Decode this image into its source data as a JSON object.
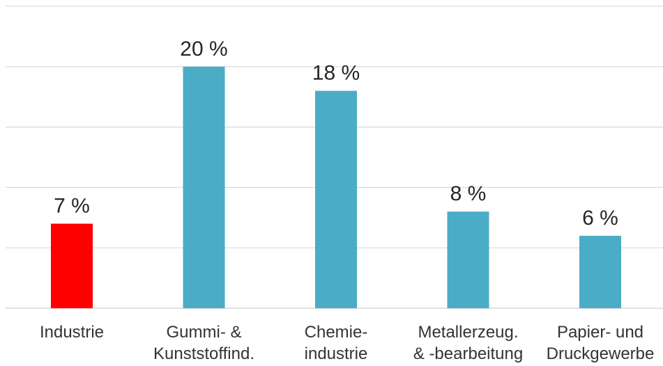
{
  "chart_data": {
    "type": "bar",
    "categories": [
      [
        "Industrie"
      ],
      [
        "Gummi- &",
        "Kunststoffind."
      ],
      [
        "Chemie-",
        "industrie"
      ],
      [
        "Metallerzeug.",
        "& -bearbeitung"
      ],
      [
        "Papier- und",
        "Druckgewerbe"
      ]
    ],
    "values": [
      7,
      20,
      18,
      8,
      6
    ],
    "data_labels": [
      "7 %",
      "20 %",
      "18 %",
      "8 %",
      "6 %"
    ],
    "ylim": [
      0,
      25
    ],
    "y_gridlines": [
      0,
      5,
      10,
      15,
      20,
      25
    ],
    "grid": true,
    "legend": "none",
    "colors": {
      "highlight": "#ff0000",
      "bar": "#4bacc6",
      "grid": "#d9d9d9"
    },
    "highlight_index": 0
  }
}
